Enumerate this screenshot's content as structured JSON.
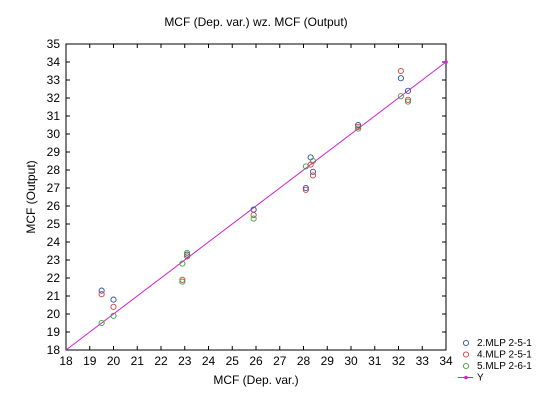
{
  "chart_data": {
    "type": "scatter",
    "title": "MCF (Dep. var.) wz. MCF (Output)",
    "xlabel": "MCF (Dep. var.)",
    "ylabel": "MCF (Output)",
    "xlim": [
      18,
      34
    ],
    "ylim": [
      18,
      35
    ],
    "xticks": [
      "18",
      "19",
      "20",
      "21",
      "22",
      "23",
      "24",
      "25",
      "26",
      "27",
      "28",
      "29",
      "30",
      "31",
      "32",
      "33",
      "34"
    ],
    "yticks": [
      "18",
      "19",
      "20",
      "21",
      "22",
      "23",
      "24",
      "25",
      "26",
      "27",
      "28",
      "29",
      "30",
      "31",
      "32",
      "33",
      "34",
      "35"
    ],
    "grid": false,
    "legend_position": "bottom-right",
    "series": [
      {
        "name": "2.MLP 2-5-1",
        "color": "#3050a0",
        "marker": "circle-open",
        "points": [
          [
            19.5,
            21.3
          ],
          [
            20.0,
            20.8
          ],
          [
            23.1,
            23.3
          ],
          [
            25.9,
            25.8
          ],
          [
            28.1,
            27.0
          ],
          [
            28.3,
            28.7
          ],
          [
            28.4,
            27.9
          ],
          [
            30.3,
            30.5
          ],
          [
            32.1,
            33.1
          ],
          [
            32.4,
            32.4
          ]
        ]
      },
      {
        "name": "4.MLP 2-5-1",
        "color": "#d04040",
        "marker": "circle-open",
        "points": [
          [
            19.5,
            21.1
          ],
          [
            20.0,
            20.4
          ],
          [
            22.9,
            21.9
          ],
          [
            23.1,
            23.2
          ],
          [
            25.9,
            25.5
          ],
          [
            28.1,
            26.9
          ],
          [
            28.3,
            28.3
          ],
          [
            28.4,
            27.7
          ],
          [
            30.3,
            30.4
          ],
          [
            32.1,
            33.5
          ],
          [
            32.4,
            31.9
          ]
        ]
      },
      {
        "name": "5.MLP 2-6-1",
        "color": "#40a040",
        "marker": "circle-open",
        "points": [
          [
            19.5,
            19.5
          ],
          [
            20.0,
            19.9
          ],
          [
            22.9,
            21.8
          ],
          [
            22.9,
            22.8
          ],
          [
            23.1,
            23.4
          ],
          [
            25.9,
            25.3
          ],
          [
            28.1,
            28.2
          ],
          [
            28.4,
            28.5
          ],
          [
            30.3,
            30.3
          ],
          [
            32.1,
            32.1
          ],
          [
            32.4,
            31.8
          ]
        ]
      }
    ],
    "reference_line": {
      "name": "Y",
      "color": "#d020d0",
      "from": [
        18,
        18
      ],
      "to": [
        34,
        34
      ]
    }
  }
}
